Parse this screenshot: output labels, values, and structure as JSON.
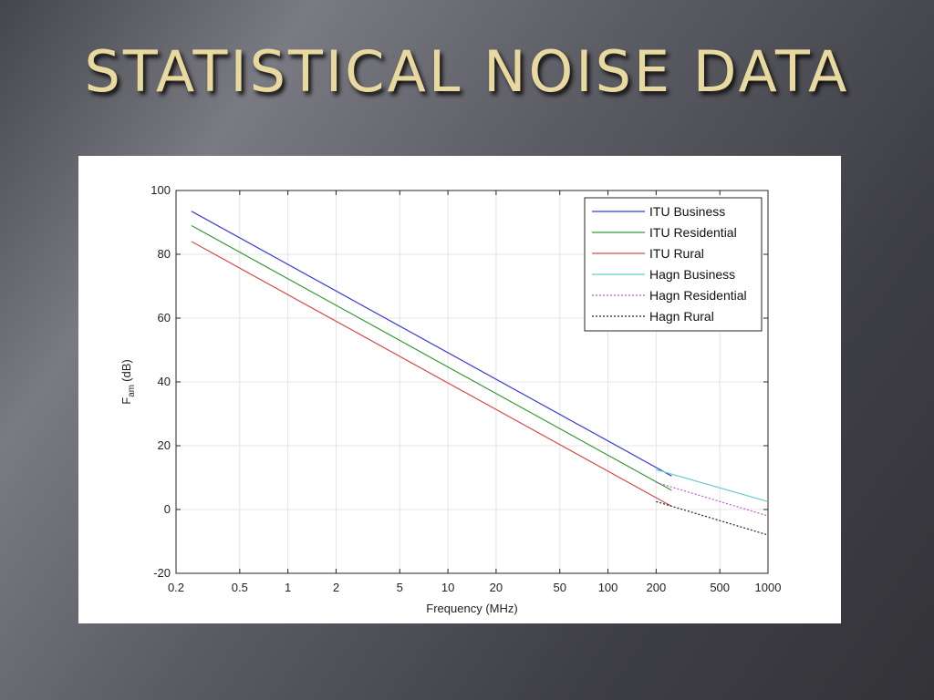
{
  "slide": {
    "title": "STATISTICAL NOISE DATA"
  },
  "chart_data": {
    "type": "line",
    "xlabel": "Frequency (MHz)",
    "ylabel_main": "F",
    "ylabel_sub": "am",
    "ylabel_unit": "(dB)",
    "x_scale": "log",
    "xlim": [
      0.2,
      1000
    ],
    "ylim": [
      -20,
      100
    ],
    "x_ticks": [
      0.2,
      0.5,
      1,
      2,
      5,
      10,
      20,
      50,
      100,
      200,
      500,
      1000
    ],
    "x_tick_labels": [
      "0.2",
      "0.5",
      "1",
      "2",
      "5",
      "10",
      "20",
      "50",
      "100",
      "200",
      "500",
      "1000"
    ],
    "y_ticks": [
      -20,
      0,
      20,
      40,
      60,
      80,
      100
    ],
    "y_tick_labels": [
      "-20",
      "0",
      "20",
      "40",
      "60",
      "80",
      "100"
    ],
    "grid": true,
    "legend_position": "top-right",
    "series": [
      {
        "name": "ITU Business",
        "color": "#3b3bd6",
        "dash": "solid",
        "x": [
          0.25,
          250
        ],
        "y": [
          93.5,
          10.5
        ]
      },
      {
        "name": "ITU Residential",
        "color": "#3a9a3a",
        "dash": "solid",
        "x": [
          0.25,
          250
        ],
        "y": [
          89,
          6
        ]
      },
      {
        "name": "ITU Rural",
        "color": "#d84a4a",
        "dash": "solid",
        "x": [
          0.25,
          250
        ],
        "y": [
          84,
          1
        ]
      },
      {
        "name": "Hagn Business",
        "color": "#66cccc",
        "dash": "solid",
        "x": [
          200,
          1000
        ],
        "y": [
          12.5,
          2.5
        ]
      },
      {
        "name": "Hagn Residential",
        "color": "#cc55cc",
        "dash": "dotted",
        "x": [
          200,
          1000
        ],
        "y": [
          8.5,
          -2
        ]
      },
      {
        "name": "Hagn Rural",
        "color": "#222222",
        "dash": "dotted",
        "x": [
          200,
          1000
        ],
        "y": [
          2.5,
          -8
        ]
      }
    ]
  }
}
